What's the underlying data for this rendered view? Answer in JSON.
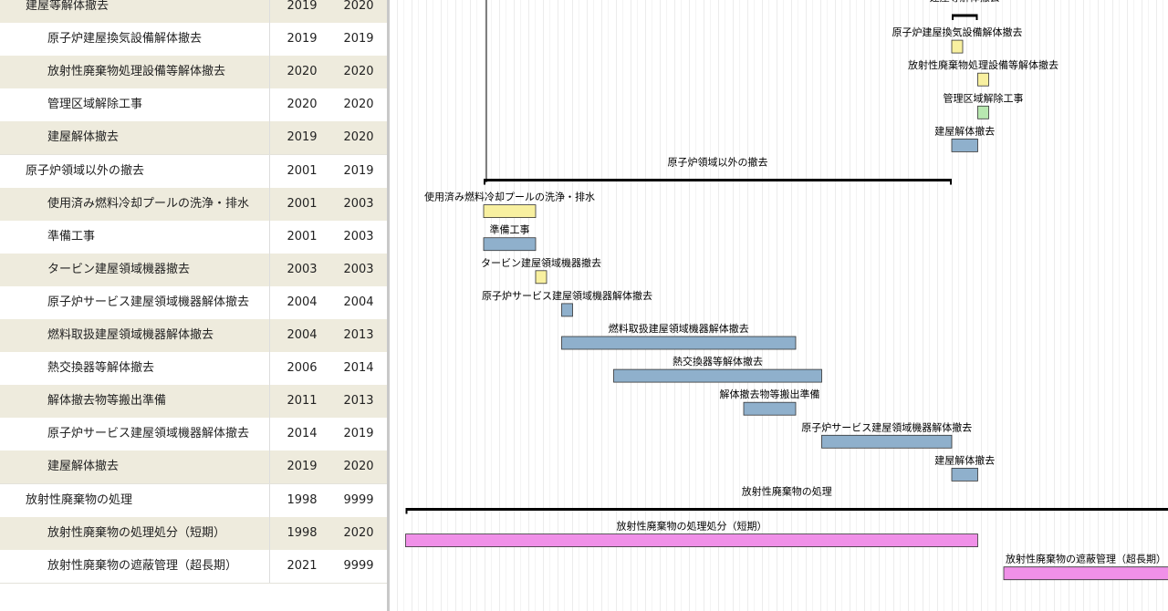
{
  "rows": [
    {
      "name": "建屋等解体撤去",
      "start": 2019,
      "end": 2020,
      "group": true
    },
    {
      "name": "原子炉建屋換気設備解体撤去",
      "start": 2019,
      "end": 2019,
      "color": "#f8f0a0"
    },
    {
      "name": "放射性廃棄物処理設備等解体撤去",
      "start": 2020,
      "end": 2020,
      "color": "#f8f0a0"
    },
    {
      "name": "管理区域解除工事",
      "start": 2020,
      "end": 2020,
      "color": "#b8e8b0"
    },
    {
      "name": "建屋解体撤去",
      "start": 2019,
      "end": 2020,
      "color": "#8fb0cc"
    },
    {
      "name": "原子炉領域以外の撤去",
      "start": 2001,
      "end": 2019,
      "group": true
    },
    {
      "name": "使用済み燃料冷却プールの洗浄・排水",
      "start": 2001,
      "end": 2003,
      "color": "#f8f0a0"
    },
    {
      "name": "準備工事",
      "start": 2001,
      "end": 2003,
      "color": "#8fb0cc"
    },
    {
      "name": "タービン建屋領域機器撤去",
      "start": 2003,
      "end": 2003,
      "color": "#f8f0a0"
    },
    {
      "name": "原子炉サービス建屋領域機器解体撤去",
      "start": 2004,
      "end": 2004,
      "color": "#8fb0cc"
    },
    {
      "name": "燃料取扱建屋領域機器解体撤去",
      "start": 2004,
      "end": 2013,
      "color": "#8fb0cc"
    },
    {
      "name": "熱交換器等解体撤去",
      "start": 2006,
      "end": 2014,
      "color": "#8fb0cc"
    },
    {
      "name": "解体撤去物等搬出準備",
      "start": 2011,
      "end": 2013,
      "color": "#8fb0cc"
    },
    {
      "name": "原子炉サービス建屋領域機器解体撤去",
      "start": 2014,
      "end": 2019,
      "color": "#8fb0cc"
    },
    {
      "name": "建屋解体撤去",
      "start": 2019,
      "end": 2020,
      "color": "#8fb0cc"
    },
    {
      "name": "放射性廃棄物の処理",
      "start": 1998,
      "end": 9999,
      "group": true
    },
    {
      "name": "放射性廃棄物の処理処分（短期）",
      "start": 1998,
      "end": 2020,
      "color": "#f090e8"
    },
    {
      "name": "放射性廃棄物の遮蔽管理（超長期）",
      "start": 2021,
      "end": 9999,
      "color": "#f090e8"
    }
  ]
}
